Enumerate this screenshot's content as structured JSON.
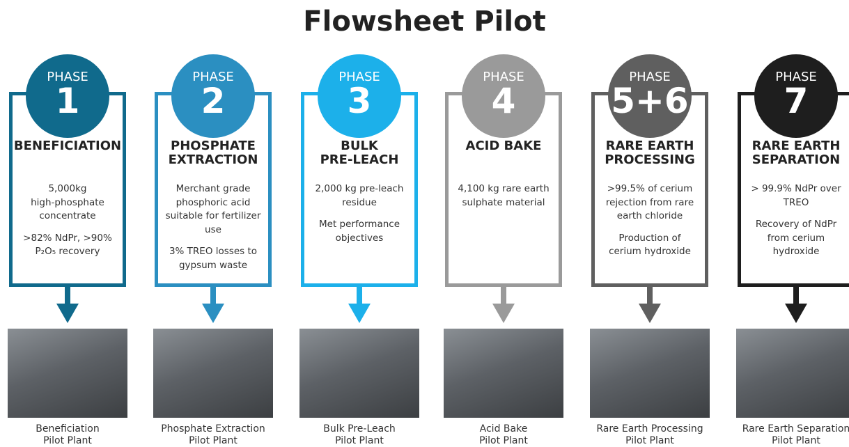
{
  "title": "Flowsheet Pilot",
  "phases": [
    {
      "label": "PHASE",
      "number": "1",
      "heading": [
        "BENEFICIATION"
      ],
      "body": [
        [
          "5,000kg",
          "high-phosphate",
          "concentrate"
        ],
        [
          ">82% NdPr, >90%",
          "P₂O₅ recovery"
        ]
      ],
      "caption": [
        "Beneficiation",
        "Pilot Plant"
      ]
    },
    {
      "label": "PHASE",
      "number": "2",
      "heading": [
        "PHOSPHATE",
        "EXTRACTION"
      ],
      "body": [
        [
          "Merchant grade",
          "phosphoric acid",
          "suitable for fertilizer",
          "use"
        ],
        [
          "3% TREO losses to",
          "gypsum waste"
        ]
      ],
      "caption": [
        "Phosphate Extraction",
        "Pilot Plant"
      ]
    },
    {
      "label": "PHASE",
      "number": "3",
      "heading": [
        "BULK",
        "PRE-LEACH"
      ],
      "body": [
        [
          "2,000 kg pre-leach",
          "residue"
        ],
        [
          "Met performance",
          "objectives"
        ]
      ],
      "caption": [
        "Bulk Pre-Leach",
        "Pilot Plant"
      ]
    },
    {
      "label": "PHASE",
      "number": "4",
      "heading": [
        "ACID BAKE"
      ],
      "body": [
        [
          "4,100 kg rare earth",
          "sulphate material"
        ]
      ],
      "caption": [
        "Acid Bake",
        "Pilot Plant"
      ]
    },
    {
      "label": "PHASE",
      "number": "5+6",
      "heading": [
        "RARE EARTH",
        "PROCESSING"
      ],
      "body": [
        [
          ">99.5% of cerium",
          "rejection from rare",
          "earth chloride"
        ],
        [
          "Production of",
          "cerium hydroxide"
        ]
      ],
      "caption": [
        "Rare Earth Processing",
        "Pilot Plant"
      ]
    },
    {
      "label": "PHASE",
      "number": "7",
      "heading": [
        "RARE EARTH",
        "SEPARATION"
      ],
      "body": [
        [
          "> 99.9% NdPr over",
          "TREO"
        ],
        [
          "Recovery of NdPr",
          "from cerium",
          "hydroxide"
        ]
      ],
      "caption": [
        "Rare Earth Separation",
        "Pilot Plant"
      ]
    }
  ]
}
